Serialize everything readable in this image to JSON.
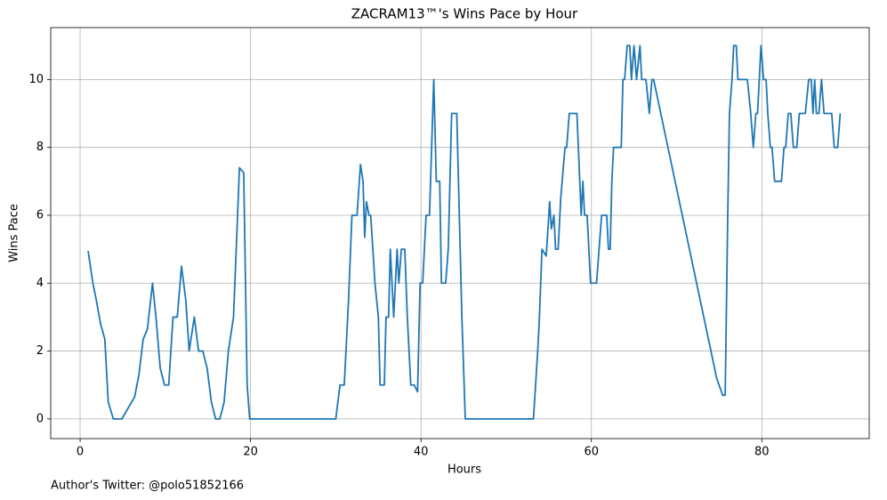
{
  "chart_data": {
    "type": "line",
    "title": "ZACRAM13™'s Wins Pace by Hour",
    "xlabel": "Hours",
    "ylabel": "Wins Pace",
    "annotation": "Author's Twitter: @polo51852166",
    "xlim": [
      -3.45,
      92.6
    ],
    "ylim": [
      -0.58,
      11.53
    ],
    "xticks": [
      0,
      20,
      40,
      60,
      80
    ],
    "yticks": [
      0,
      2,
      4,
      6,
      8,
      10
    ],
    "grid": true,
    "series": [
      {
        "name": "Wins Pace",
        "color": "#1f77b4",
        "x": [
          0.94,
          1.5,
          1.9,
          2.4,
          2.9,
          3.3,
          3.9,
          4.9,
          6.4,
          6.9,
          7.4,
          7.9,
          8.5,
          8.9,
          9.4,
          9.9,
          10.4,
          10.9,
          11.4,
          11.9,
          12.4,
          12.8,
          13.4,
          13.9,
          14.4,
          14.9,
          15.4,
          15.9,
          16.4,
          16.9,
          17.4,
          18.0,
          18.4,
          18.7,
          19.2,
          19.6,
          19.9,
          30,
          30.5,
          31,
          31.5,
          31.9,
          32.5,
          32.9,
          33.2,
          33.4,
          33.6,
          33.9,
          34.1,
          34.6,
          35,
          35.2,
          35.7,
          35.9,
          36.2,
          36.4,
          36.8,
          37.2,
          37.4,
          37.7,
          38.1,
          38.4,
          38.8,
          39.2,
          39.6,
          39.9,
          40.2,
          40.6,
          41.0,
          41.5,
          41.8,
          42.2,
          42.4,
          42.9,
          43.2,
          43.6,
          44.2,
          44.5,
          44.8,
          45.2,
          53.2,
          53.7,
          53.9,
          54.2,
          54.7,
          55.1,
          55.3,
          55.6,
          55.8,
          56.1,
          56.4,
          56.9,
          57.1,
          57.4,
          58.3,
          58.8,
          59,
          59.2,
          59.5,
          59.9,
          60.6,
          61.2,
          61.8,
          62,
          62.2,
          62.4,
          62.6,
          63.5,
          63.7,
          63.9,
          64.2,
          64.5,
          64.7,
          65,
          65.3,
          65.7,
          65.9,
          66.4,
          66.8,
          67.1,
          67.3,
          74.7,
          75.4,
          75.7,
          76,
          76.2,
          76.5,
          76.7,
          77,
          77.2,
          78.3,
          78.7,
          79,
          79.3,
          79.5,
          79.9,
          80.2,
          80.5,
          80.7,
          81,
          81.2,
          81.5,
          82.3,
          82.6,
          82.8,
          83.1,
          83.4,
          83.7,
          84.1,
          84.4,
          85.1,
          85.5,
          85.8,
          86,
          86.2,
          86.4,
          86.7,
          87,
          87.3,
          88.2,
          88.5,
          88.9,
          89.2
        ],
        "values": [
          4.95,
          4.0,
          3.5,
          2.8,
          2.35,
          0.5,
          0,
          0,
          0.65,
          1.3,
          2.35,
          2.65,
          4,
          3,
          1.5,
          1,
          1,
          3,
          3,
          4.5,
          3.5,
          2,
          3,
          2,
          2,
          1.5,
          0.5,
          0,
          0,
          0.5,
          2,
          3,
          5.5,
          7.4,
          7.25,
          1,
          0,
          0,
          1,
          1,
          3.5,
          6,
          6,
          7.5,
          7,
          5.35,
          6.4,
          6,
          6,
          4,
          3,
          1,
          1,
          3,
          3,
          5,
          3,
          5,
          4,
          5,
          5,
          3,
          1,
          1,
          0.8,
          4,
          4,
          6,
          6,
          10,
          7,
          7,
          4,
          4,
          5,
          9,
          9,
          6,
          3,
          0,
          0,
          2,
          3,
          5,
          4.8,
          6.4,
          5.6,
          6,
          5,
          5,
          6.5,
          8,
          8,
          9,
          9,
          6,
          7,
          6,
          6,
          4,
          4,
          6,
          6,
          5,
          5,
          7,
          8,
          8,
          10,
          10,
          11,
          11,
          10,
          11,
          10,
          11,
          10,
          10,
          9,
          10,
          10,
          1.2,
          0.7,
          0.7,
          6,
          9,
          10,
          11,
          11,
          10,
          10,
          9,
          8,
          9,
          9,
          11,
          10,
          10,
          9,
          8,
          8,
          7,
          7,
          8,
          8,
          9,
          9,
          8,
          8,
          9,
          9,
          10,
          10,
          9,
          10,
          9,
          9,
          10,
          9,
          9,
          8,
          8,
          9
        ]
      }
    ]
  }
}
